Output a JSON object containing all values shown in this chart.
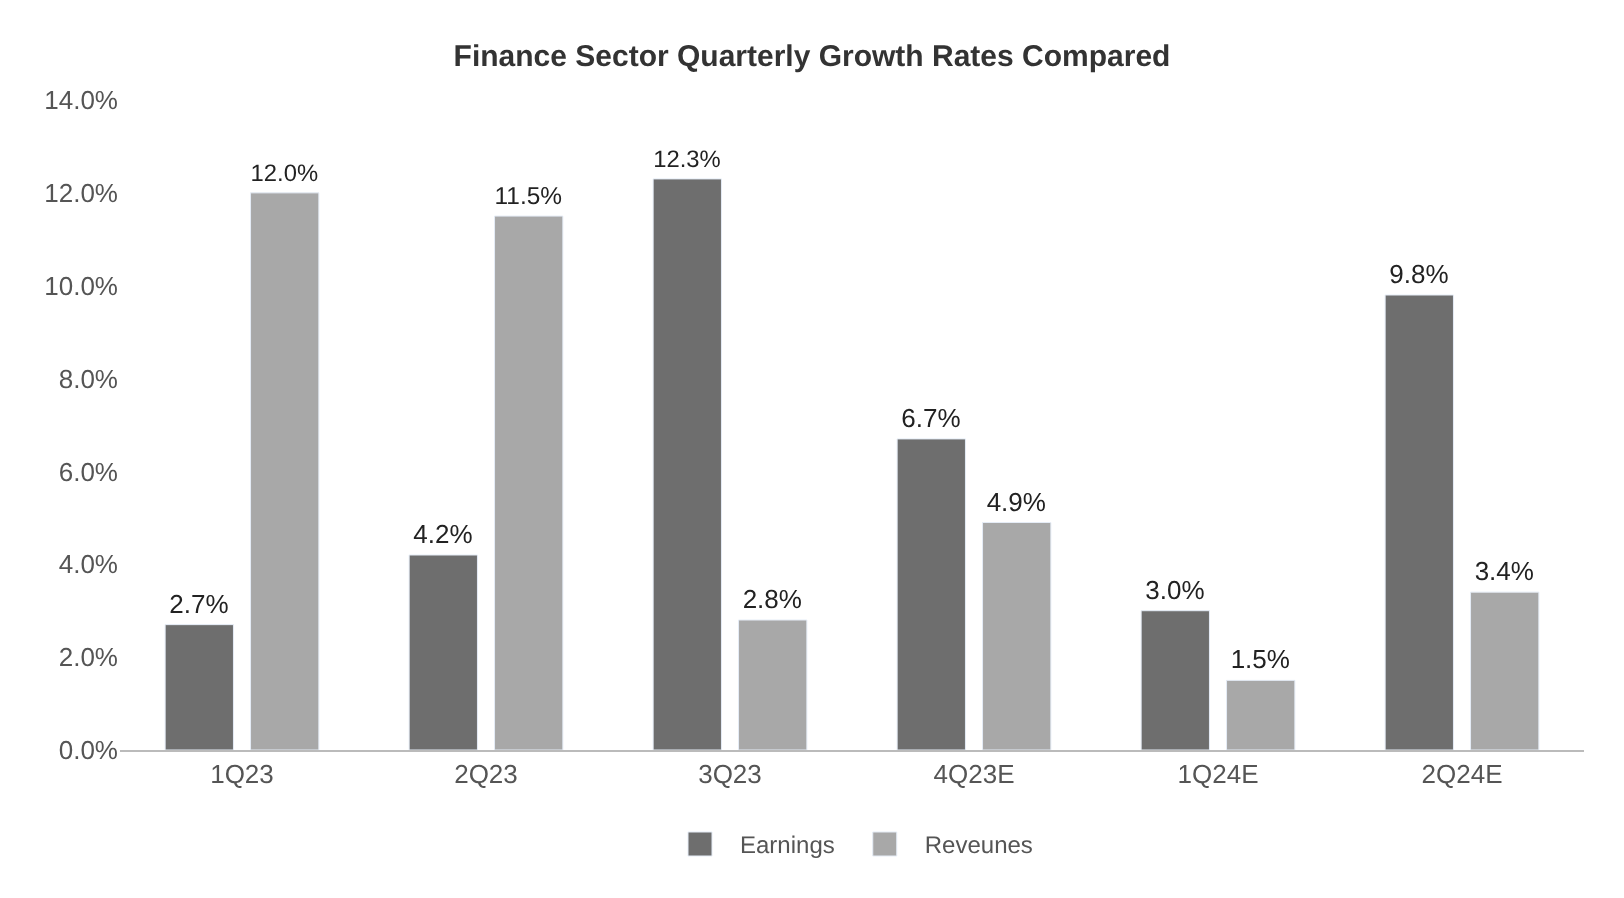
{
  "chart_data": {
    "type": "bar",
    "title": "Finance Sector Quarterly Growth Rates Compared",
    "categories": [
      "1Q23",
      "2Q23",
      "3Q23",
      "4Q23E",
      "1Q24E",
      "2Q24E"
    ],
    "series": [
      {
        "name": "Earnings",
        "color": "#6e6e6e",
        "values": [
          2.7,
          4.2,
          12.3,
          6.7,
          3.0,
          9.8
        ],
        "value_labels": [
          "2.7%",
          "4.2%",
          "12.3%",
          "6.7%",
          "3.0%",
          "9.8%"
        ]
      },
      {
        "name": "Reveunes",
        "color": "#a8a8a8",
        "values": [
          12.0,
          11.5,
          2.8,
          4.9,
          1.5,
          3.4
        ],
        "value_labels": [
          "12.0%",
          "11.5%",
          "2.8%",
          "4.9%",
          "1.5%",
          "3.4%"
        ]
      }
    ],
    "ylim": [
      0,
      14
    ],
    "yticks": [
      {
        "value": 0,
        "label": "0.0%"
      },
      {
        "value": 2,
        "label": "2.0%"
      },
      {
        "value": 4,
        "label": "4.0%"
      },
      {
        "value": 6,
        "label": "6.0%"
      },
      {
        "value": 8,
        "label": "8.0%"
      },
      {
        "value": 10,
        "label": "10.0%"
      },
      {
        "value": 12,
        "label": "12.0%"
      },
      {
        "value": 14,
        "label": "14.0%"
      }
    ],
    "legend": "bottom"
  }
}
